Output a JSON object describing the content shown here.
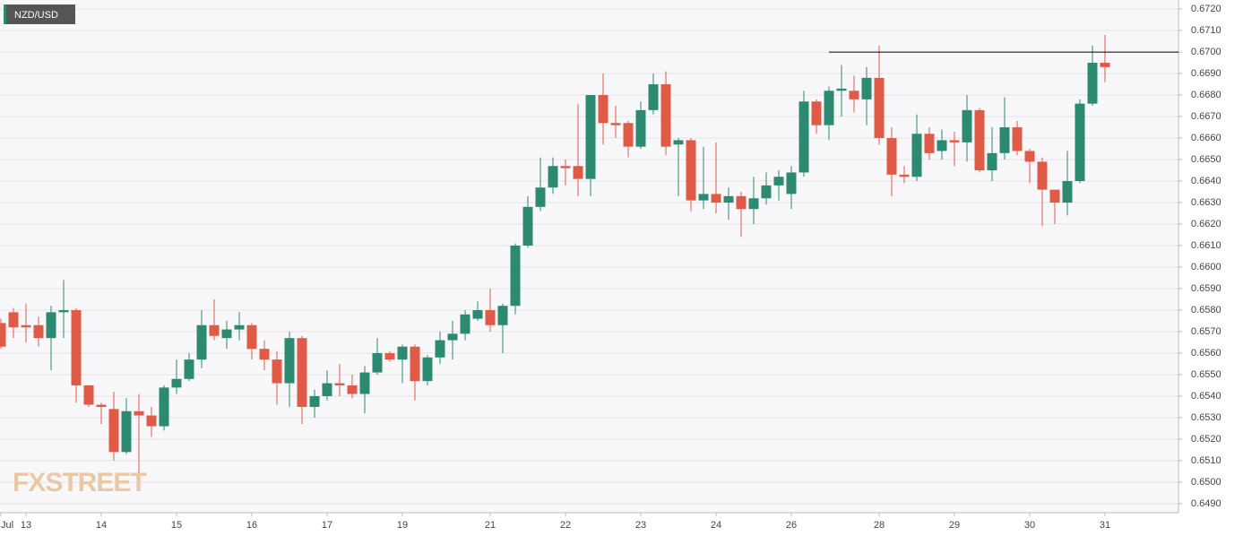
{
  "chart_data": {
    "type": "candlestick",
    "title": "NZD/USD",
    "watermark": "FXSTREET",
    "up_color": "#2b8a6f",
    "down_color": "#e05a48",
    "grid": true,
    "hline": {
      "value": 0.67,
      "color": "#000000",
      "from_index": 66
    },
    "categories": [
      "Jul",
      null,
      "13",
      null,
      null,
      null,
      null,
      null,
      "14",
      null,
      null,
      null,
      null,
      null,
      "15",
      null,
      null,
      null,
      null,
      null,
      "16",
      null,
      null,
      null,
      null,
      null,
      "17",
      null,
      null,
      null,
      null,
      null,
      "19",
      null,
      null,
      null,
      null,
      null,
      null,
      "21",
      null,
      null,
      null,
      null,
      null,
      "22",
      null,
      null,
      null,
      null,
      null,
      "23",
      null,
      null,
      null,
      null,
      null,
      "24",
      null,
      null,
      null,
      null,
      null,
      "26",
      null,
      null,
      null,
      null,
      null,
      null,
      "28",
      null,
      null,
      null,
      null,
      null,
      "29",
      null,
      null,
      null,
      null,
      null,
      "30",
      null,
      null,
      null,
      null,
      null,
      "31"
    ],
    "open": [
      0.6574,
      0.6579,
      0.6573,
      0.6573,
      0.6567,
      0.6579,
      0.658,
      0.6545,
      0.6536,
      0.6534,
      0.6514,
      0.6533,
      0.6531,
      0.6526,
      0.6544,
      0.6548,
      0.6557,
      0.6573,
      0.6567,
      0.6571,
      0.6573,
      0.6562,
      0.6557,
      0.6546,
      0.6567,
      0.6535,
      0.654,
      0.6546,
      0.6545,
      0.6541,
      0.6551,
      0.656,
      0.6557,
      0.6563,
      0.6547,
      0.6558,
      0.6566,
      0.6569,
      0.6576,
      0.658,
      0.6573,
      0.6582,
      0.661,
      0.6628,
      0.6637,
      0.6647,
      0.6647,
      0.6641,
      0.668,
      0.6667,
      0.6667,
      0.6656,
      0.6673,
      0.6685,
      0.6657,
      0.6659,
      0.6631,
      0.6634,
      0.663,
      0.6633,
      0.6627,
      0.6632,
      0.6638,
      0.6634,
      0.6644,
      0.6677,
      0.6666,
      0.6682,
      0.6682,
      0.6678,
      0.6688,
      0.666,
      0.6643,
      0.6642,
      0.6662,
      0.6654,
      0.6659,
      0.6658,
      0.6673,
      0.6645,
      0.6653,
      0.6665,
      0.6654,
      0.6649,
      0.6636,
      0.663,
      0.664,
      0.6676,
      0.6695
    ],
    "high": [
      0.6576,
      0.6581,
      0.6583,
      0.6577,
      0.6582,
      0.6594,
      0.6581,
      0.6545,
      0.6537,
      0.6542,
      0.6539,
      0.6541,
      0.6535,
      0.6545,
      0.6557,
      0.656,
      0.658,
      0.6585,
      0.6575,
      0.6579,
      0.6574,
      0.6566,
      0.6561,
      0.657,
      0.6568,
      0.6543,
      0.6552,
      0.6555,
      0.655,
      0.6554,
      0.6567,
      0.6561,
      0.6564,
      0.6564,
      0.6559,
      0.657,
      0.6575,
      0.658,
      0.6584,
      0.659,
      0.6583,
      0.6611,
      0.6633,
      0.6651,
      0.6651,
      0.665,
      0.6676,
      0.668,
      0.669,
      0.6675,
      0.6668,
      0.6677,
      0.669,
      0.6691,
      0.666,
      0.666,
      0.6656,
      0.6658,
      0.6637,
      0.6635,
      0.6642,
      0.6644,
      0.6645,
      0.6647,
      0.6682,
      0.6678,
      0.6684,
      0.6694,
      0.6689,
      0.6693,
      0.6703,
      0.6665,
      0.6647,
      0.6671,
      0.6665,
      0.6664,
      0.6663,
      0.668,
      0.6674,
      0.6665,
      0.6679,
      0.6668,
      0.6655,
      0.6651,
      0.6636,
      0.6654,
      0.6678,
      0.6703,
      0.6708
    ],
    "low": [
      0.6562,
      0.6567,
      0.6565,
      0.6563,
      0.6552,
      0.6567,
      0.6537,
      0.6535,
      0.6527,
      0.651,
      0.6513,
      0.6502,
      0.6521,
      0.6524,
      0.6541,
      0.6547,
      0.6553,
      0.6566,
      0.6562,
      0.6566,
      0.6557,
      0.6552,
      0.6536,
      0.6535,
      0.6527,
      0.653,
      0.6538,
      0.654,
      0.6539,
      0.6532,
      0.655,
      0.6556,
      0.6546,
      0.6538,
      0.6545,
      0.6555,
      0.6557,
      0.6566,
      0.6575,
      0.657,
      0.656,
      0.6578,
      0.6609,
      0.6626,
      0.6634,
      0.6638,
      0.6633,
      0.6633,
      0.6657,
      0.666,
      0.6651,
      0.6655,
      0.6671,
      0.6652,
      0.6633,
      0.6626,
      0.6627,
      0.6625,
      0.6622,
      0.6614,
      0.662,
      0.6629,
      0.6631,
      0.6627,
      0.6642,
      0.6662,
      0.6659,
      0.667,
      0.6672,
      0.6666,
      0.6657,
      0.6633,
      0.6639,
      0.664,
      0.665,
      0.665,
      0.6647,
      0.6649,
      0.6644,
      0.664,
      0.665,
      0.6652,
      0.6639,
      0.6619,
      0.662,
      0.6624,
      0.6639,
      0.6675,
      0.6686
    ],
    "close": [
      0.6563,
      0.6572,
      0.6572,
      0.6567,
      0.6579,
      0.658,
      0.6545,
      0.6536,
      0.6535,
      0.6514,
      0.6533,
      0.6531,
      0.6526,
      0.6544,
      0.6548,
      0.6557,
      0.6573,
      0.6568,
      0.6571,
      0.6573,
      0.6562,
      0.6557,
      0.6546,
      0.6567,
      0.6535,
      0.654,
      0.6546,
      0.6545,
      0.6541,
      0.6551,
      0.656,
      0.6557,
      0.6563,
      0.6547,
      0.6558,
      0.6566,
      0.6569,
      0.6578,
      0.658,
      0.6573,
      0.6582,
      0.661,
      0.6628,
      0.6637,
      0.6647,
      0.6646,
      0.6641,
      0.668,
      0.6667,
      0.6666,
      0.6656,
      0.6673,
      0.6685,
      0.6656,
      0.6659,
      0.6631,
      0.6634,
      0.663,
      0.6633,
      0.6627,
      0.6632,
      0.6638,
      0.6642,
      0.6644,
      0.6677,
      0.6666,
      0.6682,
      0.6683,
      0.6678,
      0.6688,
      0.666,
      0.6643,
      0.6642,
      0.6662,
      0.6653,
      0.6659,
      0.6658,
      0.6673,
      0.6645,
      0.6653,
      0.6665,
      0.6654,
      0.6649,
      0.6636,
      0.663,
      0.664,
      0.6676,
      0.6695,
      0.6693
    ],
    "ylim": [
      0.64858,
      0.67242
    ],
    "yticks": [
      {
        "value": 0.649,
        "label": "0.6490"
      },
      {
        "value": 0.65,
        "label": "0.6500"
      },
      {
        "value": 0.651,
        "label": "0.6510"
      },
      {
        "value": 0.652,
        "label": "0.6520"
      },
      {
        "value": 0.653,
        "label": "0.6530"
      },
      {
        "value": 0.654,
        "label": "0.6540"
      },
      {
        "value": 0.655,
        "label": "0.6550"
      },
      {
        "value": 0.656,
        "label": "0.6560"
      },
      {
        "value": 0.657,
        "label": "0.6570"
      },
      {
        "value": 0.658,
        "label": "0.6580"
      },
      {
        "value": 0.659,
        "label": "0.6590"
      },
      {
        "value": 0.66,
        "label": "0.6600"
      },
      {
        "value": 0.661,
        "label": "0.6610"
      },
      {
        "value": 0.662,
        "label": "0.6620"
      },
      {
        "value": 0.663,
        "label": "0.6630"
      },
      {
        "value": 0.664,
        "label": "0.6640"
      },
      {
        "value": 0.665,
        "label": "0.6650"
      },
      {
        "value": 0.666,
        "label": "0.6660"
      },
      {
        "value": 0.667,
        "label": "0.6670"
      },
      {
        "value": 0.668,
        "label": "0.6680"
      },
      {
        "value": 0.669,
        "label": "0.6690"
      },
      {
        "value": 0.67,
        "label": "0.6700"
      },
      {
        "value": 0.671,
        "label": "0.6710"
      },
      {
        "value": 0.672,
        "label": "0.6720"
      }
    ]
  }
}
